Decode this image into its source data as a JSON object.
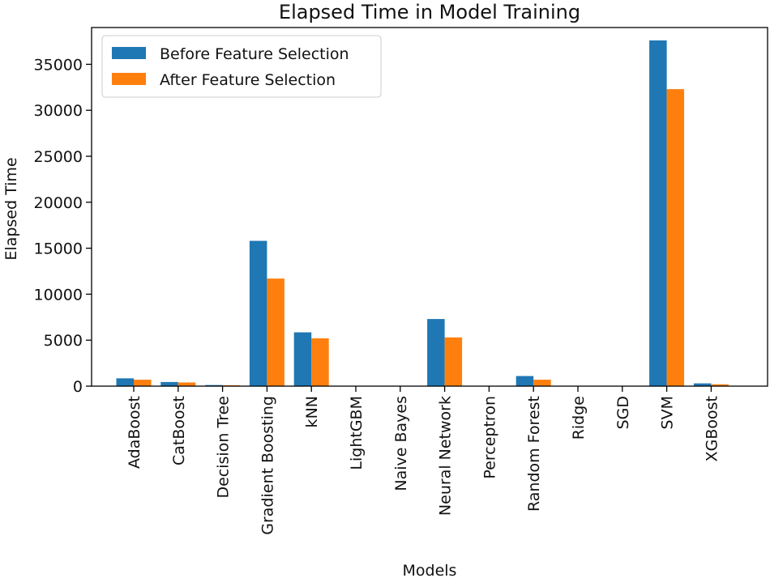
{
  "chart_data": {
    "type": "bar",
    "title": "Elapsed Time in Model Training",
    "xlabel": "Models",
    "ylabel": "Elapsed Time",
    "ylim": [
      0,
      39000
    ],
    "yticks": [
      0,
      5000,
      10000,
      15000,
      20000,
      25000,
      30000,
      35000
    ],
    "legend_position": "top-left",
    "categories": [
      "AdaBoost",
      "CatBoost",
      "Decision Tree",
      "Gradient Boosting",
      "kNN",
      "LightGBM",
      "Naive Bayes",
      "Neural Network",
      "Perceptron",
      "Random Forest",
      "Ridge",
      "SGD",
      "SVM",
      "XGBoost"
    ],
    "series": [
      {
        "name": "Before Feature Selection",
        "color": "#1f77b4",
        "values": [
          850,
          450,
          120,
          15800,
          5850,
          20,
          10,
          7300,
          20,
          1100,
          10,
          15,
          37600,
          300
        ]
      },
      {
        "name": "After Feature Selection",
        "color": "#ff7f0e",
        "values": [
          700,
          400,
          100,
          11700,
          5200,
          15,
          8,
          5300,
          15,
          700,
          8,
          10,
          32300,
          200
        ]
      }
    ]
  }
}
